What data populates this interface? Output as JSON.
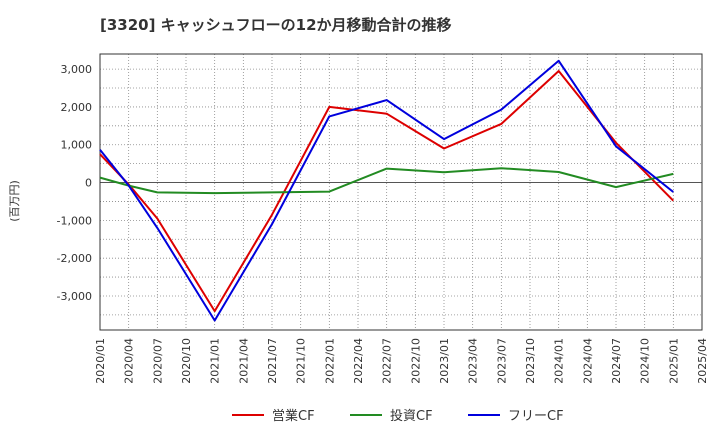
{
  "chart_data": {
    "type": "line",
    "title": "[3320]  キャッシュフローの12か月移動合計の推移",
    "ylabel": "(百万円)",
    "xlabel": "",
    "ylim": [
      -3900,
      3400
    ],
    "yticks": [
      3000,
      2000,
      1000,
      0,
      -1000,
      -2000,
      -3000
    ],
    "ytick_labels": [
      "3,000",
      "2,000",
      "1,000",
      "0",
      "-1,000",
      "-2,000",
      "-3,000"
    ],
    "categories": [
      "2020/01",
      "2020/04",
      "2020/07",
      "2020/10",
      "2021/01",
      "2021/04",
      "2021/07",
      "2021/10",
      "2022/01",
      "2022/04",
      "2022/07",
      "2022/10",
      "2023/01",
      "2023/04",
      "2023/07",
      "2023/10",
      "2024/01",
      "2024/04",
      "2024/07",
      "2024/10",
      "2025/01",
      "2025/04"
    ],
    "grid": true,
    "legend_position": "bottom",
    "series": [
      {
        "name": "営業CF",
        "color": "#dd0000",
        "values": [
          750,
          -50,
          -950,
          null,
          -3400,
          null,
          -850,
          null,
          2000,
          null,
          1820,
          null,
          900,
          null,
          1550,
          null,
          2950,
          null,
          1050,
          null,
          -480,
          null
        ]
      },
      {
        "name": "投資CF",
        "color": "#228b22",
        "values": [
          130,
          -80,
          -260,
          null,
          -280,
          null,
          -260,
          null,
          -240,
          null,
          370,
          null,
          270,
          null,
          380,
          null,
          280,
          null,
          -120,
          null,
          230,
          null
        ]
      },
      {
        "name": "フリーCF",
        "color": "#0000dd",
        "values": [
          870,
          -80,
          -1200,
          null,
          -3650,
          null,
          -1100,
          null,
          1750,
          null,
          2180,
          null,
          1150,
          null,
          1930,
          null,
          3220,
          null,
          960,
          null,
          -250,
          null
        ]
      }
    ]
  }
}
